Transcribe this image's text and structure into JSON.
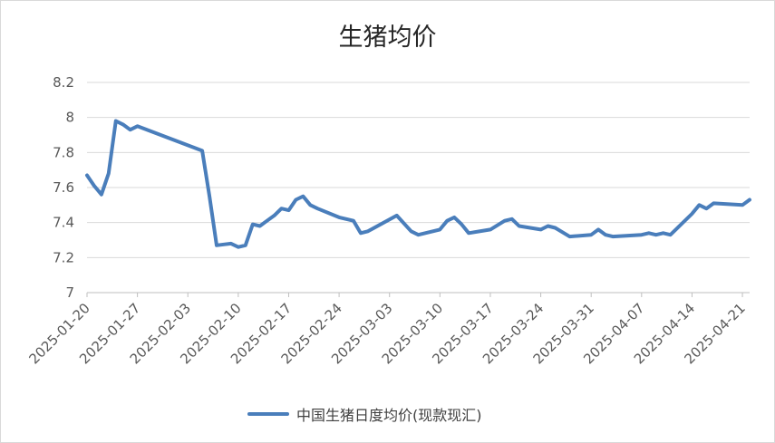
{
  "chart_data": {
    "type": "line",
    "title": "生猪均价",
    "xlabel": "",
    "ylabel": "",
    "ylim": [
      7,
      8.2
    ],
    "yticks": [
      "7",
      "7.2",
      "7.4",
      "7.6",
      "7.8",
      "8",
      "8.2"
    ],
    "xlim": [
      "2025-01-20",
      "2025-04-22"
    ],
    "xticks": [
      "2025-01-20",
      "2025-01-27",
      "2025-02-03",
      "2025-02-10",
      "2025-02-17",
      "2025-02-24",
      "2025-03-03",
      "2025-03-10",
      "2025-03-17",
      "2025-03-24",
      "2025-03-31",
      "2025-04-07",
      "2025-04-14",
      "2025-04-21"
    ],
    "grid": {
      "horizontal": true,
      "vertical": false
    },
    "legend_position": "bottom",
    "color": "#4a7ebb",
    "series": [
      {
        "name": "中国生猪日度均价(现款现汇)",
        "x": [
          "2025-01-20",
          "2025-01-21",
          "2025-01-22",
          "2025-01-23",
          "2025-01-24",
          "2025-01-25",
          "2025-01-26",
          "2025-01-27",
          "2025-02-05",
          "2025-02-06",
          "2025-02-07",
          "2025-02-08",
          "2025-02-09",
          "2025-02-10",
          "2025-02-11",
          "2025-02-12",
          "2025-02-13",
          "2025-02-14",
          "2025-02-15",
          "2025-02-16",
          "2025-02-17",
          "2025-02-18",
          "2025-02-19",
          "2025-02-20",
          "2025-02-21",
          "2025-02-24",
          "2025-02-26",
          "2025-02-27",
          "2025-02-28",
          "2025-03-04",
          "2025-03-06",
          "2025-03-07",
          "2025-03-10",
          "2025-03-11",
          "2025-03-12",
          "2025-03-13",
          "2025-03-14",
          "2025-03-17",
          "2025-03-19",
          "2025-03-20",
          "2025-03-21",
          "2025-03-24",
          "2025-03-25",
          "2025-03-26",
          "2025-03-28",
          "2025-03-31",
          "2025-04-01",
          "2025-04-02",
          "2025-04-03",
          "2025-04-07",
          "2025-04-08",
          "2025-04-09",
          "2025-04-10",
          "2025-04-11",
          "2025-04-14",
          "2025-04-15",
          "2025-04-16",
          "2025-04-17",
          "2025-04-21",
          "2025-04-22"
        ],
        "values": [
          7.67,
          7.61,
          7.56,
          7.68,
          7.98,
          7.96,
          7.93,
          7.95,
          7.81,
          7.55,
          7.27,
          7.275,
          7.28,
          7.26,
          7.27,
          7.39,
          7.38,
          7.41,
          7.44,
          7.48,
          7.47,
          7.53,
          7.55,
          7.5,
          7.48,
          7.43,
          7.41,
          7.34,
          7.35,
          7.44,
          7.35,
          7.33,
          7.36,
          7.41,
          7.43,
          7.39,
          7.34,
          7.36,
          7.41,
          7.42,
          7.38,
          7.36,
          7.38,
          7.37,
          7.32,
          7.33,
          7.36,
          7.33,
          7.32,
          7.33,
          7.34,
          7.33,
          7.34,
          7.33,
          7.45,
          7.5,
          7.48,
          7.51,
          7.5,
          7.53
        ]
      }
    ]
  }
}
